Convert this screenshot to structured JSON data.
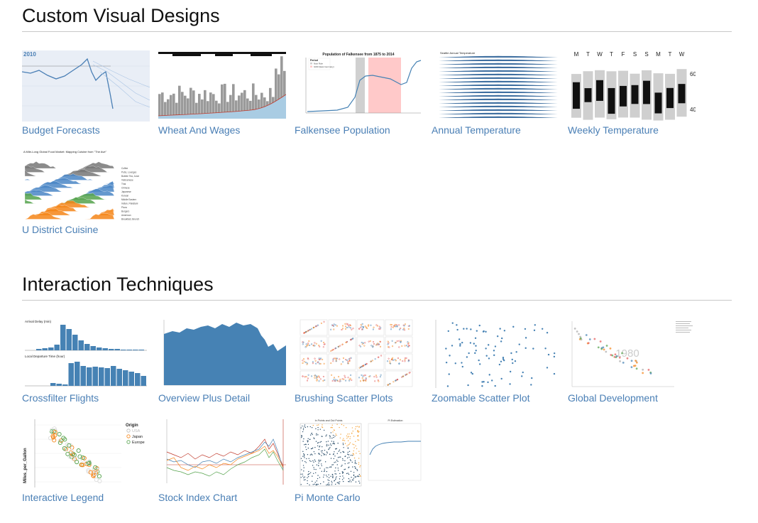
{
  "sections": [
    {
      "title": "Custom Visual Designs",
      "items": [
        {
          "label": "Budget Forecasts",
          "thumb_text": "2010"
        },
        {
          "label": "Wheat And Wages"
        },
        {
          "label": "Falkensee Population",
          "thumb_text": "Population of Falkensee from 1875 to 2014",
          "period_label": "Period",
          "legend": [
            "Nazi Rule",
            "GDR (East Germany)"
          ]
        },
        {
          "label": "Annual Temperature",
          "thumb_text": "Seattle Annual Temperature"
        },
        {
          "label": "Weekly Temperature",
          "days": [
            "M",
            "T",
            "W",
            "T",
            "F",
            "S",
            "S",
            "M",
            "T",
            "W"
          ],
          "ticks": [
            "60",
            "40"
          ]
        },
        {
          "label": "U District Cuisine",
          "thumb_text": "A Mile-Long Global Food Market: Mapping Cuisine from \"The Ave\"",
          "legend": [
            "Coffee",
            "Pubs, Lounges",
            "Bubble Tea, Juice",
            "Vietnamese",
            "Thai",
            "Chinese",
            "Japanese",
            "Korean",
            "Middle Eastern",
            "Indian, Pakistani",
            "Pizza",
            "Burgers",
            "American",
            "Breakfast, Brunch"
          ]
        }
      ]
    },
    {
      "title": "Interaction Techniques",
      "items": [
        {
          "label": "Crossfilter Flights",
          "thumb_text": "Arrival Delay (min)",
          "thumb_text2": "Local Departure Time (hour)"
        },
        {
          "label": "Overview Plus Detail"
        },
        {
          "label": "Brushing Scatter Plots"
        },
        {
          "label": "Zoomable Scatter Plot"
        },
        {
          "label": "Global Development",
          "thumb_text": "1980"
        },
        {
          "label": "Interactive Legend",
          "thumb_text": "Origin",
          "ylabel": "Miles_per_Gallon",
          "legend": [
            "USA",
            "Japan",
            "Europe"
          ]
        },
        {
          "label": "Stock Index Chart"
        },
        {
          "label": "Pi Monte Carlo",
          "thumb_text": "In Points and Out Points",
          "thumb_text2": "Pi Estimation"
        }
      ]
    }
  ],
  "colors": {
    "link": "#4a7fb5",
    "blue": "#4682b4",
    "orange": "#f58518",
    "green": "#54a24b",
    "gray": "#999999"
  }
}
